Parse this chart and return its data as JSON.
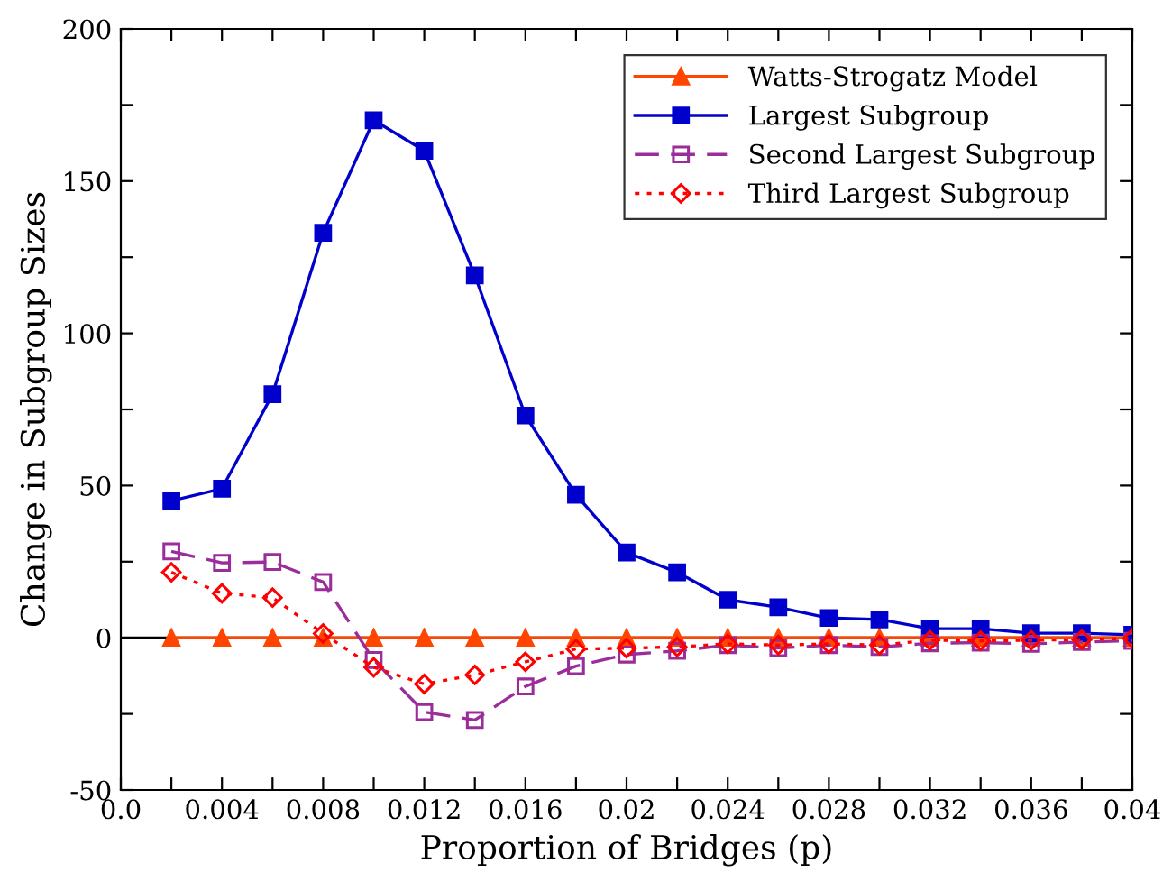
{
  "chart_data": {
    "type": "line",
    "xlabel": "Proportion of Bridges (p)",
    "ylabel": "Change in Subgroup Sizes",
    "x": [
      0.002,
      0.004,
      0.006,
      0.008,
      0.01,
      0.012,
      0.014,
      0.016,
      0.018,
      0.02,
      0.022,
      0.024,
      0.026,
      0.028,
      0.03,
      0.032,
      0.034,
      0.036,
      0.038,
      0.04
    ],
    "series": [
      {
        "name": "Watts-Strogatz Model",
        "color": "#ff4500",
        "marker": "triangle",
        "line_style": "solid",
        "values": [
          0,
          0,
          0,
          0,
          0,
          0,
          0,
          0,
          0,
          0,
          0,
          0,
          0,
          0,
          0,
          0,
          0,
          0,
          0,
          0
        ]
      },
      {
        "name": "Largest Subgroup",
        "color": "#0000cd",
        "marker": "square",
        "line_style": "solid",
        "values": [
          45,
          49,
          80,
          133,
          170,
          160,
          119,
          73,
          47,
          28,
          21.5,
          12.5,
          10,
          6.5,
          6,
          3,
          3,
          1.5,
          1.5,
          1
        ]
      },
      {
        "name": "Second Largest Subgroup",
        "color": "#9b2d9b",
        "marker": "square",
        "line_style": "dashed",
        "values": [
          28.4,
          24.6,
          24.9,
          18.3,
          -7.3,
          -24.4,
          -27,
          -16,
          -9.3,
          -5.5,
          -4.3,
          -2.4,
          -3.4,
          -2.4,
          -3,
          -1.8,
          -1.6,
          -2,
          -1.4,
          -1
        ]
      },
      {
        "name": "Third Largest Subgroup",
        "color": "#ff0000",
        "marker": "diamond",
        "line_style": "dotted",
        "values": [
          21.5,
          14.6,
          13.2,
          1.4,
          -9.7,
          -15.2,
          -12.2,
          -7.9,
          -3.7,
          -3.4,
          -3,
          -2,
          -2.4,
          -2,
          -2.4,
          -0.8,
          -1,
          -0.8,
          -0.6,
          -0.2
        ]
      }
    ],
    "xlim": [
      0.0,
      0.04
    ],
    "xticks": [
      {
        "value": 0,
        "label": "0.0"
      },
      {
        "value": 0.002,
        "label": null
      },
      0.004,
      {
        "value": 0.006,
        "label": null
      },
      0.008,
      {
        "value": 0.01,
        "label": null
      },
      0.012,
      {
        "value": 0.014,
        "label": null
      },
      0.016,
      {
        "value": 0.018,
        "label": null
      },
      0.02,
      {
        "value": 0.022,
        "label": null
      },
      0.024,
      {
        "value": 0.026,
        "label": null
      },
      0.028,
      {
        "value": 0.03,
        "label": null
      },
      0.032,
      {
        "value": 0.034,
        "label": null
      },
      0.036,
      {
        "value": 0.038,
        "label": null
      },
      0.04
    ],
    "ylim": [
      -50,
      200
    ],
    "yticks": [
      -50,
      {
        "value": -25,
        "label": null
      },
      0,
      {
        "value": 25,
        "label": null
      },
      50,
      {
        "value": 75,
        "label": null
      },
      100,
      {
        "value": 125,
        "label": null
      },
      150,
      {
        "value": 175,
        "label": null
      },
      200
    ],
    "ref_lines": [
      {
        "axis": "y",
        "value": 0,
        "color": "#000000",
        "line_style": "solid"
      }
    ],
    "grid": false,
    "legend": "top right"
  }
}
